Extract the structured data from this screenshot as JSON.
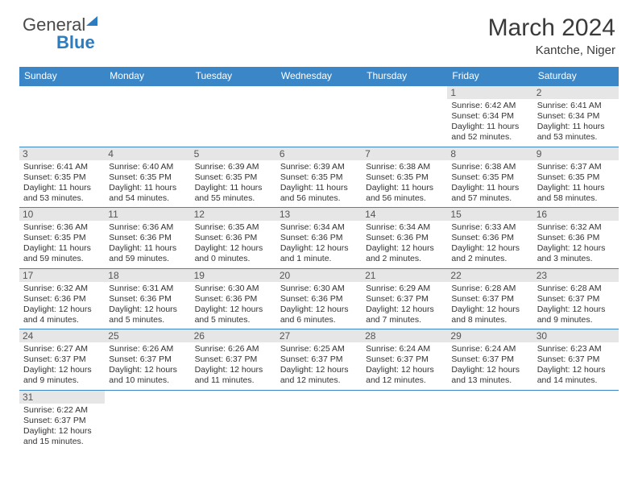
{
  "brand": {
    "general": "General",
    "blue": "Blue"
  },
  "title": "March 2024",
  "location": "Kantche, Niger",
  "colors": {
    "header_bg": "#3b86c6",
    "header_text": "#ffffff",
    "daynum_bg": "#e6e6e6",
    "daynum_text": "#555555",
    "cell_border": "#3b86c6",
    "body_text": "#333333",
    "brand_gray": "#4a4a4a",
    "brand_blue": "#2b7cc0"
  },
  "typography": {
    "title_fontsize": 30,
    "location_fontsize": 15,
    "dayhead_fontsize": 12,
    "cell_fontsize": 10.5,
    "font_family": "Arial"
  },
  "day_headers": [
    "Sunday",
    "Monday",
    "Tuesday",
    "Wednesday",
    "Thursday",
    "Friday",
    "Saturday"
  ],
  "weeks": [
    [
      null,
      null,
      null,
      null,
      null,
      {
        "n": "1",
        "sr": "Sunrise: 6:42 AM",
        "ss": "Sunset: 6:34 PM",
        "d1": "Daylight: 11 hours",
        "d2": "and 52 minutes."
      },
      {
        "n": "2",
        "sr": "Sunrise: 6:41 AM",
        "ss": "Sunset: 6:34 PM",
        "d1": "Daylight: 11 hours",
        "d2": "and 53 minutes."
      }
    ],
    [
      {
        "n": "3",
        "sr": "Sunrise: 6:41 AM",
        "ss": "Sunset: 6:35 PM",
        "d1": "Daylight: 11 hours",
        "d2": "and 53 minutes."
      },
      {
        "n": "4",
        "sr": "Sunrise: 6:40 AM",
        "ss": "Sunset: 6:35 PM",
        "d1": "Daylight: 11 hours",
        "d2": "and 54 minutes."
      },
      {
        "n": "5",
        "sr": "Sunrise: 6:39 AM",
        "ss": "Sunset: 6:35 PM",
        "d1": "Daylight: 11 hours",
        "d2": "and 55 minutes."
      },
      {
        "n": "6",
        "sr": "Sunrise: 6:39 AM",
        "ss": "Sunset: 6:35 PM",
        "d1": "Daylight: 11 hours",
        "d2": "and 56 minutes."
      },
      {
        "n": "7",
        "sr": "Sunrise: 6:38 AM",
        "ss": "Sunset: 6:35 PM",
        "d1": "Daylight: 11 hours",
        "d2": "and 56 minutes."
      },
      {
        "n": "8",
        "sr": "Sunrise: 6:38 AM",
        "ss": "Sunset: 6:35 PM",
        "d1": "Daylight: 11 hours",
        "d2": "and 57 minutes."
      },
      {
        "n": "9",
        "sr": "Sunrise: 6:37 AM",
        "ss": "Sunset: 6:35 PM",
        "d1": "Daylight: 11 hours",
        "d2": "and 58 minutes."
      }
    ],
    [
      {
        "n": "10",
        "sr": "Sunrise: 6:36 AM",
        "ss": "Sunset: 6:35 PM",
        "d1": "Daylight: 11 hours",
        "d2": "and 59 minutes."
      },
      {
        "n": "11",
        "sr": "Sunrise: 6:36 AM",
        "ss": "Sunset: 6:36 PM",
        "d1": "Daylight: 11 hours",
        "d2": "and 59 minutes."
      },
      {
        "n": "12",
        "sr": "Sunrise: 6:35 AM",
        "ss": "Sunset: 6:36 PM",
        "d1": "Daylight: 12 hours",
        "d2": "and 0 minutes."
      },
      {
        "n": "13",
        "sr": "Sunrise: 6:34 AM",
        "ss": "Sunset: 6:36 PM",
        "d1": "Daylight: 12 hours",
        "d2": "and 1 minute."
      },
      {
        "n": "14",
        "sr": "Sunrise: 6:34 AM",
        "ss": "Sunset: 6:36 PM",
        "d1": "Daylight: 12 hours",
        "d2": "and 2 minutes."
      },
      {
        "n": "15",
        "sr": "Sunrise: 6:33 AM",
        "ss": "Sunset: 6:36 PM",
        "d1": "Daylight: 12 hours",
        "d2": "and 2 minutes."
      },
      {
        "n": "16",
        "sr": "Sunrise: 6:32 AM",
        "ss": "Sunset: 6:36 PM",
        "d1": "Daylight: 12 hours",
        "d2": "and 3 minutes."
      }
    ],
    [
      {
        "n": "17",
        "sr": "Sunrise: 6:32 AM",
        "ss": "Sunset: 6:36 PM",
        "d1": "Daylight: 12 hours",
        "d2": "and 4 minutes."
      },
      {
        "n": "18",
        "sr": "Sunrise: 6:31 AM",
        "ss": "Sunset: 6:36 PM",
        "d1": "Daylight: 12 hours",
        "d2": "and 5 minutes."
      },
      {
        "n": "19",
        "sr": "Sunrise: 6:30 AM",
        "ss": "Sunset: 6:36 PM",
        "d1": "Daylight: 12 hours",
        "d2": "and 5 minutes."
      },
      {
        "n": "20",
        "sr": "Sunrise: 6:30 AM",
        "ss": "Sunset: 6:36 PM",
        "d1": "Daylight: 12 hours",
        "d2": "and 6 minutes."
      },
      {
        "n": "21",
        "sr": "Sunrise: 6:29 AM",
        "ss": "Sunset: 6:37 PM",
        "d1": "Daylight: 12 hours",
        "d2": "and 7 minutes."
      },
      {
        "n": "22",
        "sr": "Sunrise: 6:28 AM",
        "ss": "Sunset: 6:37 PM",
        "d1": "Daylight: 12 hours",
        "d2": "and 8 minutes."
      },
      {
        "n": "23",
        "sr": "Sunrise: 6:28 AM",
        "ss": "Sunset: 6:37 PM",
        "d1": "Daylight: 12 hours",
        "d2": "and 9 minutes."
      }
    ],
    [
      {
        "n": "24",
        "sr": "Sunrise: 6:27 AM",
        "ss": "Sunset: 6:37 PM",
        "d1": "Daylight: 12 hours",
        "d2": "and 9 minutes."
      },
      {
        "n": "25",
        "sr": "Sunrise: 6:26 AM",
        "ss": "Sunset: 6:37 PM",
        "d1": "Daylight: 12 hours",
        "d2": "and 10 minutes."
      },
      {
        "n": "26",
        "sr": "Sunrise: 6:26 AM",
        "ss": "Sunset: 6:37 PM",
        "d1": "Daylight: 12 hours",
        "d2": "and 11 minutes."
      },
      {
        "n": "27",
        "sr": "Sunrise: 6:25 AM",
        "ss": "Sunset: 6:37 PM",
        "d1": "Daylight: 12 hours",
        "d2": "and 12 minutes."
      },
      {
        "n": "28",
        "sr": "Sunrise: 6:24 AM",
        "ss": "Sunset: 6:37 PM",
        "d1": "Daylight: 12 hours",
        "d2": "and 12 minutes."
      },
      {
        "n": "29",
        "sr": "Sunrise: 6:24 AM",
        "ss": "Sunset: 6:37 PM",
        "d1": "Daylight: 12 hours",
        "d2": "and 13 minutes."
      },
      {
        "n": "30",
        "sr": "Sunrise: 6:23 AM",
        "ss": "Sunset: 6:37 PM",
        "d1": "Daylight: 12 hours",
        "d2": "and 14 minutes."
      }
    ],
    [
      {
        "n": "31",
        "sr": "Sunrise: 6:22 AM",
        "ss": "Sunset: 6:37 PM",
        "d1": "Daylight: 12 hours",
        "d2": "and 15 minutes."
      },
      null,
      null,
      null,
      null,
      null,
      null
    ]
  ]
}
